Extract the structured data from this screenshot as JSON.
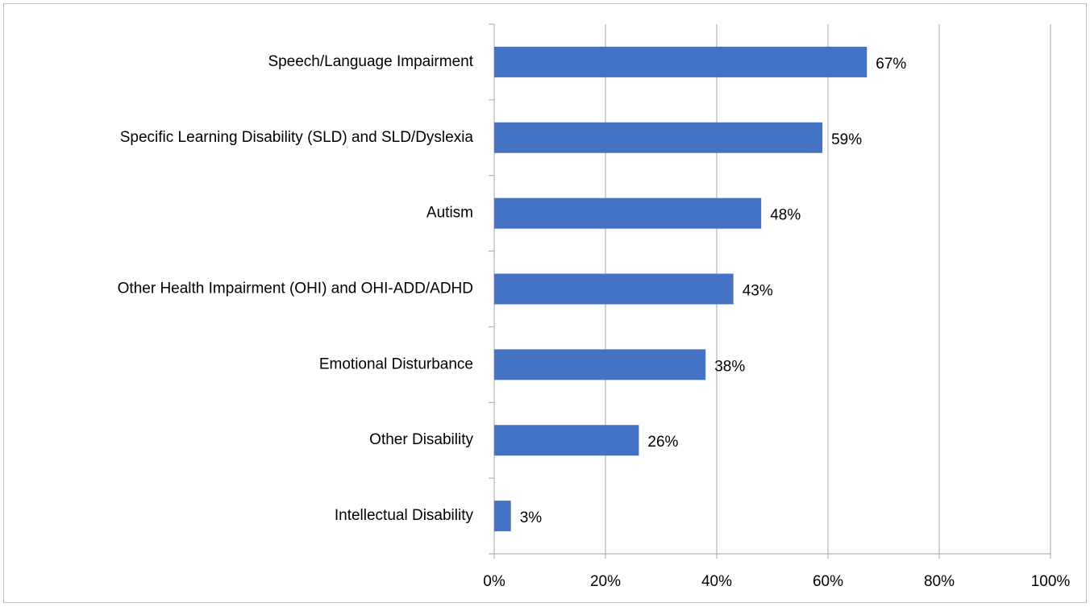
{
  "chart_data": {
    "type": "bar",
    "orientation": "horizontal",
    "categories": [
      "Speech/Language Impairment",
      "Specific Learning Disability (SLD) and SLD/Dyslexia",
      "Autism",
      "Other Health Impairment (OHI) and OHI-ADD/ADHD",
      "Emotional Disturbance",
      "Other Disability",
      "Intellectual Disability"
    ],
    "values": [
      67,
      59,
      48,
      43,
      38,
      26,
      3
    ],
    "value_labels": [
      "67%",
      "59%",
      "48%",
      "43%",
      "38%",
      "26%",
      "3%"
    ],
    "color": "#4472c4",
    "xlim": [
      0,
      100
    ],
    "xticks": [
      {
        "value": 0,
        "label": "0%"
      },
      {
        "value": 20,
        "label": "20%"
      },
      {
        "value": 40,
        "label": "40%"
      },
      {
        "value": 60,
        "label": "60%"
      },
      {
        "value": 80,
        "label": "80%"
      },
      {
        "value": 100,
        "label": "100%"
      }
    ],
    "grid": true
  }
}
